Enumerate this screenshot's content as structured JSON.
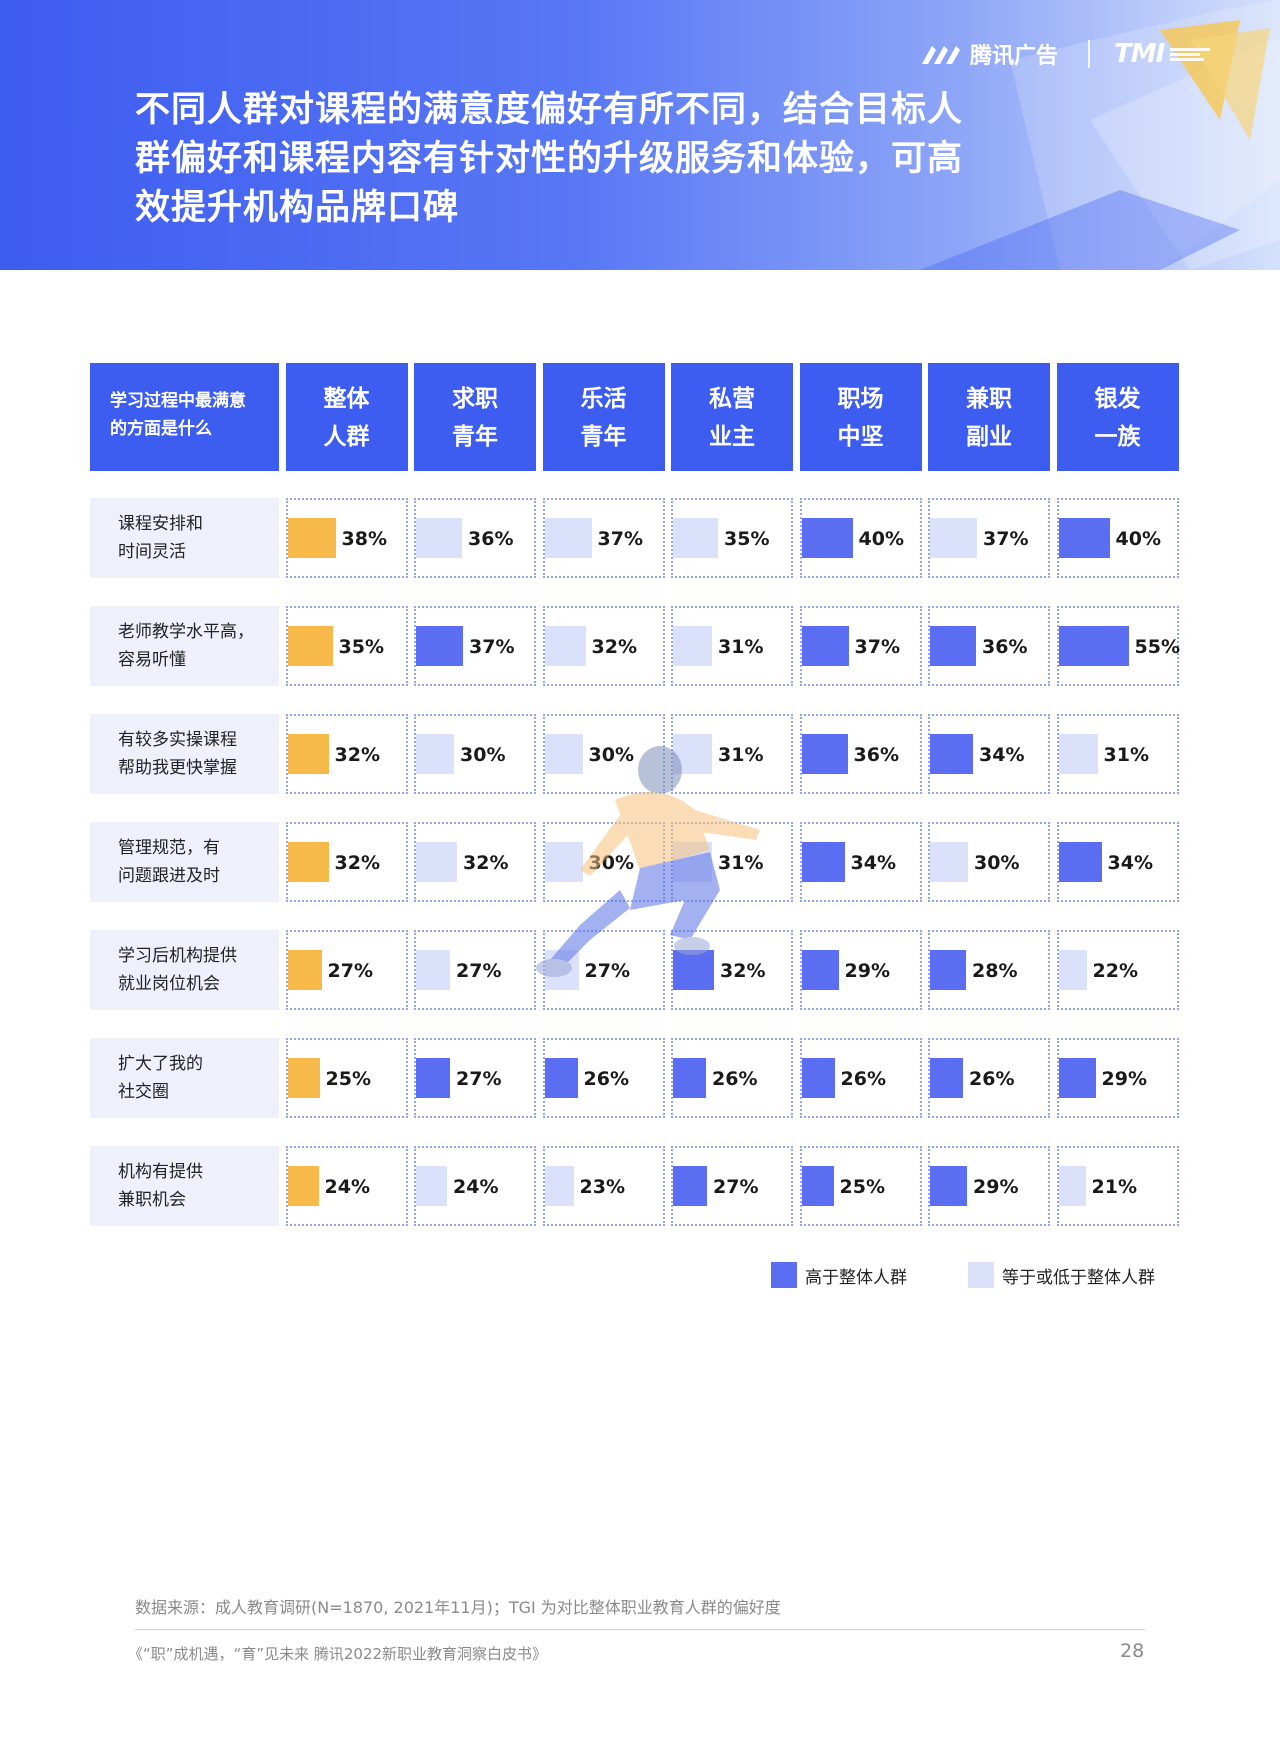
{
  "header": {
    "brand_name": "腾讯广告",
    "tmi_mark": "TMI",
    "headline_lines": [
      "不同人群对课程的满意度偏好有所不同，结合目标人",
      "群偏好和课程内容有针对性的升级服务和体验，可高",
      "效提升机构品牌口碑"
    ]
  },
  "table": {
    "first_header_lines": [
      "学习过程中最满意",
      "的方面是什么"
    ],
    "columns": [
      {
        "lines": [
          "整体",
          "人群"
        ]
      },
      {
        "lines": [
          "求职",
          "青年"
        ]
      },
      {
        "lines": [
          "乐活",
          "青年"
        ]
      },
      {
        "lines": [
          "私营",
          "业主"
        ]
      },
      {
        "lines": [
          "职场",
          "中坚"
        ]
      },
      {
        "lines": [
          "兼职",
          "副业"
        ]
      },
      {
        "lines": [
          "银发",
          "一族"
        ]
      }
    ],
    "rows": [
      {
        "label_lines": [
          "课程安排和",
          "时间灵活"
        ]
      },
      {
        "label_lines": [
          "老师教学水平高，",
          "容易听懂"
        ]
      },
      {
        "label_lines": [
          "有较多实操课程",
          "帮助我更快掌握"
        ]
      },
      {
        "label_lines": [
          "管理规范，有",
          "问题跟进及时"
        ]
      },
      {
        "label_lines": [
          "学习后机构提供",
          "就业岗位机会"
        ]
      },
      {
        "label_lines": [
          "扩大了我的",
          "社交圈"
        ]
      },
      {
        "label_lines": [
          "机构有提供",
          "兼职机会"
        ]
      }
    ]
  },
  "chart_data": {
    "type": "table",
    "title": "学习过程中最满意的方面是什么",
    "categories": [
      "课程安排和时间灵活",
      "老师教学水平高，容易听懂",
      "有较多实操课程帮助我更快掌握",
      "管理规范，有问题跟进及时",
      "学习后机构提供就业岗位机会",
      "扩大了我的社交圈",
      "机构有提供兼职机会"
    ],
    "unit": "%",
    "series": [
      {
        "name": "整体人群",
        "role": "baseline",
        "values": [
          38,
          35,
          32,
          32,
          27,
          25,
          24
        ]
      },
      {
        "name": "求职青年",
        "values": [
          36,
          37,
          30,
          32,
          27,
          27,
          24
        ]
      },
      {
        "name": "乐活青年",
        "values": [
          37,
          32,
          30,
          30,
          27,
          26,
          23
        ]
      },
      {
        "name": "私营业主",
        "values": [
          35,
          31,
          31,
          31,
          32,
          26,
          27
        ]
      },
      {
        "name": "职场中坚",
        "values": [
          40,
          37,
          36,
          34,
          29,
          26,
          25
        ]
      },
      {
        "name": "兼职副业",
        "values": [
          37,
          36,
          34,
          30,
          28,
          26,
          29
        ]
      },
      {
        "name": "银发一族",
        "values": [
          40,
          55,
          31,
          34,
          22,
          29,
          21
        ]
      }
    ],
    "colors": {
      "baseline": "#f7b94a",
      "higher": "#5b6ef2",
      "lower_or_equal": "#dbe1fb"
    },
    "legend": {
      "higher_label": "高于整体人群",
      "lower_label": "等于或低于整体人群",
      "position": "bottom-right"
    }
  },
  "footer": {
    "source": "数据来源：成人教育调研(N=1870, 2021年11月)；TGI 为对比整体职业教育人群的偏好度",
    "title": "《“职”成机遇，“育”见未来 腾讯2022新职业教育洞察白皮书》",
    "page_number": "28"
  }
}
